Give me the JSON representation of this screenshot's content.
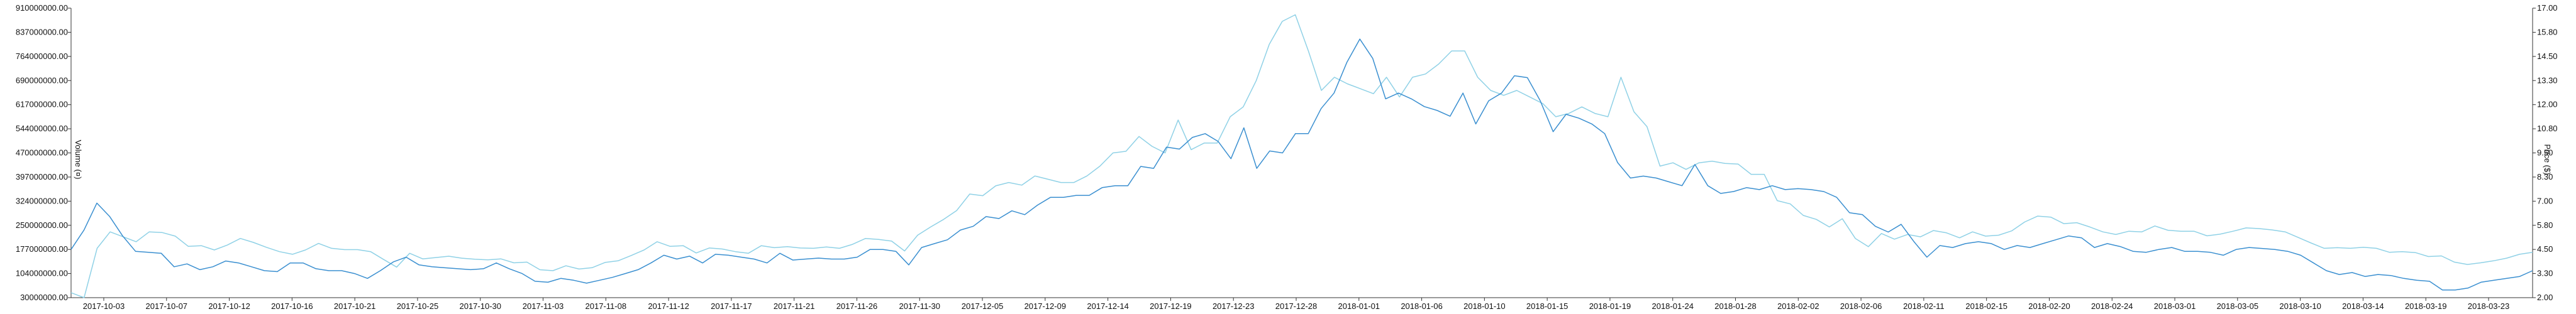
{
  "chart_data": {
    "type": "line",
    "title": "",
    "left_axis": {
      "label": "Volume (¤)",
      "min": 30000000,
      "max": 910000000,
      "ticks": [
        "30000000.00",
        "104000000.00",
        "177000000.00",
        "250000000.00",
        "324000000.00",
        "397000000.00",
        "470000000.00",
        "544000000.00",
        "617000000.00",
        "690000000.00",
        "764000000.00",
        "837000000.00",
        "910000000.00"
      ]
    },
    "right_axis": {
      "label": "Price ($)",
      "min": 2.0,
      "max": 17.0,
      "ticks": [
        "2.00",
        "3.30",
        "4.50",
        "5.80",
        "7.00",
        "8.30",
        "9.50",
        "10.80",
        "12.00",
        "13.30",
        "14.50",
        "15.80",
        "17.00"
      ]
    },
    "x_labels": [
      "2017-10-03",
      "2017-10-07",
      "2017-10-12",
      "2017-10-16",
      "2017-10-21",
      "2017-10-25",
      "2017-10-30",
      "2017-11-03",
      "2017-11-08",
      "2017-11-12",
      "2017-11-17",
      "2017-11-21",
      "2017-11-26",
      "2017-11-30",
      "2017-12-05",
      "2017-12-09",
      "2017-12-14",
      "2017-12-19",
      "2017-12-23",
      "2017-12-28",
      "2018-01-01",
      "2018-01-06",
      "2018-01-10",
      "2018-01-15",
      "2018-01-19",
      "2018-01-24",
      "2018-01-28",
      "2018-02-02",
      "2018-02-06",
      "2018-02-11",
      "2018-02-15",
      "2018-02-20",
      "2018-02-24",
      "2018-03-01",
      "2018-03-05",
      "2018-03-10",
      "2018-03-14",
      "2018-03-19",
      "2018-03-23"
    ],
    "colors": {
      "volume": "#8fd1e6",
      "price": "#3a8fd0"
    },
    "series": [
      {
        "axis": "left",
        "color": "#8fd1e6",
        "values": [
          45000000,
          30000000,
          180000000,
          230000000,
          215000000,
          200000000,
          230000000,
          228000000,
          217000000,
          186000000,
          188000000,
          175000000,
          190000000,
          210000000,
          198000000,
          183000000,
          170000000,
          162000000,
          175000000,
          195000000,
          180000000,
          176000000,
          176000000,
          170000000,
          146000000,
          123000000,
          165000000,
          148000000,
          152000000,
          156000000,
          150000000,
          147000000,
          145000000,
          148000000,
          136000000,
          138000000,
          115000000,
          112000000,
          127000000,
          117000000,
          121000000,
          137000000,
          142000000,
          158000000,
          175000000,
          200000000,
          186000000,
          188000000,
          166000000,
          181000000,
          178000000,
          170000000,
          165000000,
          188000000,
          182000000,
          185000000,
          181000000,
          180000000,
          184000000,
          180000000,
          192000000,
          210000000,
          207000000,
          202000000,
          172000000,
          220000000,
          245000000,
          268000000,
          295000000,
          345000000,
          340000000,
          370000000,
          380000000,
          372000000,
          400000000,
          390000000,
          380000000,
          380000000,
          400000000,
          430000000,
          470000000,
          475000000,
          520000000,
          490000000,
          470000000,
          570000000,
          480000000,
          500000000,
          500000000,
          580000000,
          610000000,
          690000000,
          800000000,
          870000000,
          890000000,
          780000000,
          660000000,
          700000000,
          680000000,
          665000000,
          650000000,
          700000000,
          640000000,
          700000000,
          710000000,
          740000000,
          780000000,
          780000000,
          700000000,
          660000000,
          645000000,
          660000000,
          640000000,
          620000000,
          580000000,
          590000000,
          610000000,
          590000000,
          580000000,
          700000000,
          595000000,
          550000000,
          430000000,
          440000000,
          420000000,
          440000000,
          445000000,
          438000000,
          436000000,
          405000000,
          405000000,
          325000000,
          315000000,
          280000000,
          268000000,
          245000000,
          270000000,
          210000000,
          185000000,
          225000000,
          208000000,
          222000000,
          215000000,
          234000000,
          227000000,
          212000000,
          230000000,
          217000000,
          220000000,
          233000000,
          260000000,
          278000000,
          275000000,
          255000000,
          258000000,
          245000000,
          230000000,
          222000000,
          232000000,
          230000000,
          248000000,
          235000000,
          232000000,
          232000000,
          218000000,
          223000000,
          232000000,
          242000000,
          240000000,
          236000000,
          230000000,
          213000000,
          196000000,
          180000000,
          182000000,
          180000000,
          183000000,
          180000000,
          168000000,
          170000000,
          167000000,
          155000000,
          157000000,
          138000000,
          131000000,
          136000000,
          142000000,
          150000000,
          162000000,
          168000000
        ]
      },
      {
        "axis": "right",
        "color": "#3a8fd0",
        "values": [
          4.5,
          5.5,
          6.9,
          6.2,
          5.2,
          4.4,
          4.35,
          4.3,
          3.6,
          3.75,
          3.45,
          3.6,
          3.9,
          3.8,
          3.6,
          3.4,
          3.35,
          3.8,
          3.8,
          3.5,
          3.4,
          3.4,
          3.25,
          3.0,
          3.4,
          3.85,
          4.1,
          3.7,
          3.6,
          3.55,
          3.5,
          3.45,
          3.5,
          3.8,
          3.5,
          3.25,
          2.85,
          2.8,
          3.0,
          2.9,
          2.75,
          2.9,
          3.05,
          3.25,
          3.45,
          3.8,
          4.2,
          4.0,
          4.15,
          3.8,
          4.25,
          4.2,
          4.1,
          4.0,
          3.8,
          4.3,
          3.95,
          4.0,
          4.05,
          4.0,
          4.0,
          4.1,
          4.5,
          4.5,
          4.4,
          3.7,
          4.6,
          4.8,
          5.0,
          5.5,
          5.7,
          6.2,
          6.1,
          6.5,
          6.3,
          6.8,
          7.2,
          7.2,
          7.3,
          7.3,
          7.7,
          7.8,
          7.8,
          8.8,
          8.7,
          9.8,
          9.7,
          10.3,
          10.5,
          10.1,
          9.2,
          10.8,
          8.7,
          9.6,
          9.5,
          10.5,
          10.5,
          11.8,
          12.6,
          14.2,
          15.4,
          14.4,
          12.3,
          12.6,
          12.3,
          11.9,
          11.7,
          11.4,
          12.6,
          11.0,
          12.2,
          12.6,
          13.5,
          13.4,
          12.2,
          10.6,
          11.5,
          11.3,
          11.0,
          10.5,
          9.0,
          8.2,
          8.3,
          8.2,
          8.0,
          7.8,
          8.9,
          7.8,
          7.4,
          7.5,
          7.7,
          7.6,
          7.8,
          7.6,
          7.65,
          7.6,
          7.5,
          7.2,
          6.4,
          6.3,
          5.7,
          5.4,
          5.8,
          4.9,
          4.1,
          4.7,
          4.6,
          4.8,
          4.9,
          4.8,
          4.5,
          4.7,
          4.6,
          4.8,
          5.0,
          5.2,
          5.1,
          4.6,
          4.8,
          4.65,
          4.4,
          4.35,
          4.5,
          4.6,
          4.4,
          4.4,
          4.35,
          4.2,
          4.5,
          4.6,
          4.55,
          4.5,
          4.4,
          4.2,
          3.8,
          3.4,
          3.2,
          3.3,
          3.1,
          3.2,
          3.15,
          3.0,
          2.9,
          2.85,
          2.4,
          2.4,
          2.5,
          2.8,
          2.9,
          3.0,
          3.1,
          3.4
        ]
      }
    ]
  }
}
